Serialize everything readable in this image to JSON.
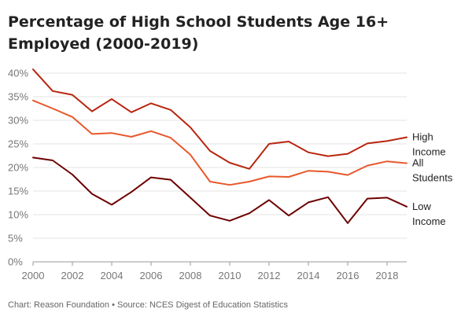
{
  "title": "Percentage of High School Students Age 16+ Employed  (2000-2019)",
  "source": "Chart: Reason Foundation • Source: NCES Digest of Education Statistics",
  "chart_data": {
    "type": "line",
    "title": "Percentage of High School Students Age 16+ Employed  (2000-2019)",
    "xlabel": "",
    "ylabel": "",
    "x": [
      2000,
      2001,
      2002,
      2003,
      2004,
      2005,
      2006,
      2007,
      2008,
      2009,
      2010,
      2011,
      2012,
      2013,
      2014,
      2015,
      2016,
      2017,
      2018,
      2019
    ],
    "xticks": [
      "2000",
      "2002",
      "2004",
      "2006",
      "2008",
      "2010",
      "2012",
      "2014",
      "2016",
      "2018"
    ],
    "yticks": [
      "0%",
      "5%",
      "10%",
      "15%",
      "20%",
      "25%",
      "30%",
      "35%",
      "40%"
    ],
    "ylim": [
      0,
      40
    ],
    "grid": true,
    "legend": "direct labels at line ends (right)",
    "series": [
      {
        "name": "High Income",
        "label_lines": [
          "High",
          "Income"
        ],
        "color": "#b8260f",
        "values": [
          40.8,
          36.2,
          35.4,
          31.9,
          34.5,
          31.7,
          33.6,
          32.2,
          28.5,
          23.5,
          21.0,
          19.7,
          25.0,
          25.5,
          23.2,
          22.4,
          22.9,
          25.1,
          25.6,
          26.4
        ]
      },
      {
        "name": "All Students",
        "label_lines": [
          "All",
          "Students"
        ],
        "color": "#e8582a",
        "values": [
          34.2,
          32.5,
          30.7,
          27.1,
          27.3,
          26.5,
          27.7,
          26.3,
          22.7,
          17.0,
          16.3,
          17.0,
          18.1,
          18.0,
          19.3,
          19.1,
          18.4,
          20.4,
          21.3,
          20.9
        ]
      },
      {
        "name": "Low Income",
        "label_lines": [
          "Low",
          "Income"
        ],
        "color": "#6e0000",
        "values": [
          22.1,
          21.5,
          18.5,
          14.4,
          12.1,
          14.8,
          17.9,
          17.4,
          13.6,
          9.8,
          8.7,
          10.3,
          13.1,
          9.8,
          12.6,
          13.7,
          8.2,
          13.4,
          13.6,
          11.7
        ]
      }
    ]
  }
}
